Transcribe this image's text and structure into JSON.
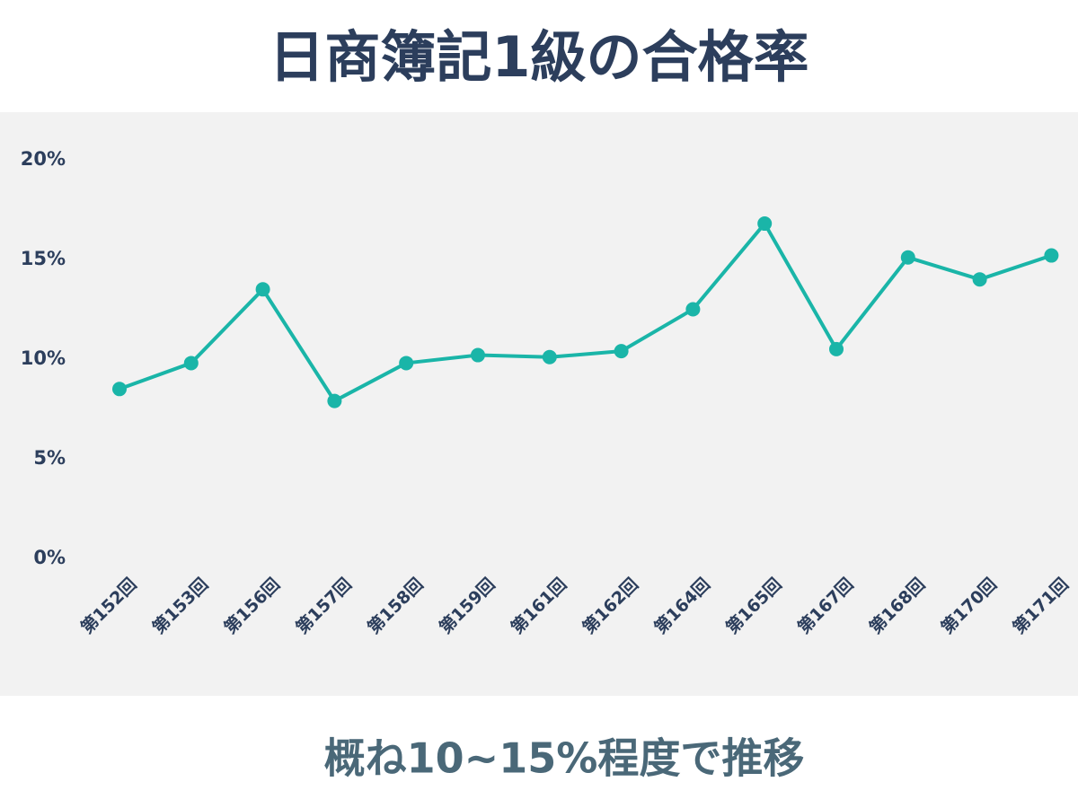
{
  "chart_data": {
    "type": "line",
    "title": "日商簿記1級の合格率",
    "subtitle": "概ね10~15%程度で推移",
    "categories": [
      "第152回",
      "第153回",
      "第156回",
      "第157回",
      "第158回",
      "第159回",
      "第161回",
      "第162回",
      "第164回",
      "第165回",
      "第167回",
      "第168回",
      "第170回",
      "第171回"
    ],
    "values": [
      8.5,
      9.8,
      13.5,
      7.9,
      9.8,
      10.2,
      10.1,
      10.4,
      12.5,
      16.8,
      10.5,
      15.1,
      14.0,
      15.2
    ],
    "color": "#1ab5a8",
    "ylim": [
      0,
      20
    ],
    "yticks": [
      {
        "value": 0,
        "label": "0%"
      },
      {
        "value": 5,
        "label": "5%"
      },
      {
        "value": 10,
        "label": "10%"
      },
      {
        "value": 15,
        "label": "15%"
      },
      {
        "value": 20,
        "label": "20%"
      }
    ],
    "grid": false
  }
}
